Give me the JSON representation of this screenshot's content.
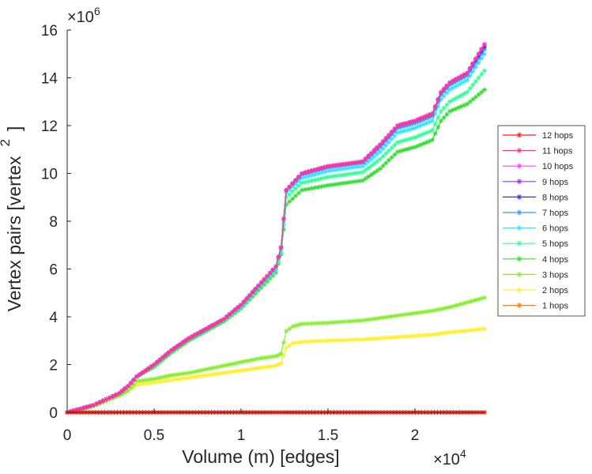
{
  "chart_data": {
    "type": "line",
    "title": "",
    "xlabel": "Volume (m) [edges]",
    "ylabel": "Vertex pairs [vertex",
    "ylabel_superscript": "2",
    "ylabel_close": "]",
    "x_multiplier": "×10",
    "x_multiplier_exp": "4",
    "y_multiplier": "×10",
    "y_multiplier_exp": "6",
    "x_scale": 10000,
    "y_scale": 1000000,
    "xlim": [
      0,
      24000
    ],
    "ylim": [
      0,
      16000000
    ],
    "x_ticks": [
      0,
      5000,
      10000,
      15000,
      20000
    ],
    "x_tick_labels": [
      "0",
      "0.5",
      "1",
      "1.5",
      "2"
    ],
    "y_ticks": [
      0,
      2000000,
      4000000,
      6000000,
      8000000,
      10000000,
      12000000,
      14000000,
      16000000
    ],
    "y_tick_labels": [
      "0",
      "2",
      "4",
      "6",
      "8",
      "10",
      "12",
      "14",
      "16"
    ],
    "grid": false,
    "legend_position": "right",
    "marker": "asterisk",
    "series": [
      {
        "name": "12 hops",
        "color": "#ff1a1a",
        "x": [
          0,
          24000
        ],
        "y": [
          0,
          0
        ]
      },
      {
        "name": "11 hops",
        "color": "#ff3399",
        "x": [
          0,
          1500,
          3000,
          3500,
          4000,
          5000,
          6000,
          7000,
          8000,
          9000,
          10000,
          11000,
          12000,
          12300,
          12600,
          13500,
          15000,
          17000,
          18000,
          19000,
          20000,
          21000,
          21500,
          22000,
          23000,
          24000
        ],
        "y": [
          0,
          300000,
          800000,
          1100000,
          1500000,
          2000000,
          2600000,
          3100000,
          3500000,
          3900000,
          4500000,
          5300000,
          6100000,
          6900000,
          9300000,
          10000000,
          10300000,
          10500000,
          11200000,
          12000000,
          12200000,
          12500000,
          13400000,
          13800000,
          14200000,
          15400000
        ]
      },
      {
        "name": "10 hops",
        "color": "#ff44ff",
        "x": [
          0,
          1500,
          3000,
          3500,
          4000,
          5000,
          6000,
          7000,
          8000,
          9000,
          10000,
          11000,
          12000,
          12300,
          12600,
          13500,
          15000,
          17000,
          18000,
          19000,
          20000,
          21000,
          21500,
          22000,
          23000,
          24000
        ],
        "y": [
          0,
          300000,
          800000,
          1100000,
          1500000,
          2000000,
          2600000,
          3100000,
          3500000,
          3900000,
          4500000,
          5300000,
          6100000,
          6900000,
          9300000,
          10000000,
          10300000,
          10500000,
          11200000,
          12000000,
          12200000,
          12500000,
          13400000,
          13800000,
          14200000,
          15400000
        ]
      },
      {
        "name": "9 hops",
        "color": "#9933ff",
        "x": [
          0,
          1500,
          3000,
          3500,
          4000,
          5000,
          6000,
          7000,
          8000,
          9000,
          10000,
          11000,
          12000,
          12300,
          12600,
          13500,
          15000,
          17000,
          18000,
          19000,
          20000,
          21000,
          21500,
          22000,
          23000,
          24000
        ],
        "y": [
          0,
          300000,
          800000,
          1100000,
          1500000,
          2000000,
          2600000,
          3100000,
          3500000,
          3900000,
          4500000,
          5300000,
          6100000,
          6900000,
          9300000,
          10000000,
          10300000,
          10500000,
          11200000,
          12000000,
          12200000,
          12500000,
          13400000,
          13800000,
          14200000,
          15400000
        ]
      },
      {
        "name": "8 hops",
        "color": "#3333ff",
        "x": [
          0,
          1500,
          3000,
          3500,
          4000,
          5000,
          6000,
          7000,
          8000,
          9000,
          10000,
          11000,
          12000,
          12300,
          12600,
          13500,
          15000,
          17000,
          18000,
          19000,
          20000,
          21000,
          21500,
          22000,
          23000,
          24000
        ],
        "y": [
          0,
          300000,
          800000,
          1100000,
          1500000,
          2000000,
          2600000,
          3100000,
          3500000,
          3900000,
          4500000,
          5300000,
          6100000,
          6900000,
          9300000,
          10000000,
          10300000,
          10500000,
          11200000,
          12000000,
          12200000,
          12500000,
          13400000,
          13800000,
          14200000,
          15300000
        ]
      },
      {
        "name": "7 hops",
        "color": "#3399ff",
        "x": [
          0,
          1500,
          3000,
          3500,
          4000,
          5000,
          6000,
          7000,
          8000,
          9000,
          10000,
          11000,
          12000,
          12300,
          12600,
          13500,
          15000,
          17000,
          18000,
          19000,
          20000,
          21000,
          21500,
          22000,
          23000,
          24000
        ],
        "y": [
          0,
          300000,
          800000,
          1100000,
          1500000,
          2000000,
          2600000,
          3100000,
          3500000,
          3900000,
          4500000,
          5300000,
          6100000,
          6900000,
          9300000,
          9950000,
          10250000,
          10450000,
          11100000,
          11900000,
          12100000,
          12400000,
          13300000,
          13700000,
          14100000,
          15200000
        ]
      },
      {
        "name": "6 hops",
        "color": "#33e6ff",
        "x": [
          0,
          1500,
          3000,
          3500,
          4000,
          5000,
          6000,
          7000,
          8000,
          9000,
          10000,
          11000,
          12000,
          12300,
          12600,
          13500,
          15000,
          17000,
          18000,
          19000,
          20000,
          21000,
          21500,
          22000,
          23000,
          24000
        ],
        "y": [
          0,
          300000,
          800000,
          1100000,
          1500000,
          2000000,
          2600000,
          3100000,
          3500000,
          3900000,
          4450000,
          5250000,
          6000000,
          6800000,
          9200000,
          9800000,
          10100000,
          10300000,
          10900000,
          11700000,
          11900000,
          12200000,
          13100000,
          13500000,
          13900000,
          15000000
        ]
      },
      {
        "name": "5 hops",
        "color": "#33ff99",
        "x": [
          0,
          1500,
          3000,
          3500,
          4000,
          5000,
          6000,
          7000,
          8000,
          9000,
          10000,
          11000,
          12000,
          12300,
          12600,
          13500,
          15000,
          17000,
          18000,
          19000,
          20000,
          21000,
          21500,
          22000,
          23000,
          24000
        ],
        "y": [
          0,
          300000,
          800000,
          1100000,
          1500000,
          1950000,
          2550000,
          3050000,
          3450000,
          3850000,
          4400000,
          5200000,
          5950000,
          6700000,
          9000000,
          9600000,
          9850000,
          10050000,
          10600000,
          11300000,
          11500000,
          11800000,
          12600000,
          13000000,
          13400000,
          14300000
        ]
      },
      {
        "name": "4 hops",
        "color": "#33dd33",
        "x": [
          0,
          1500,
          3000,
          3500,
          4000,
          5000,
          6000,
          7000,
          8000,
          9000,
          10000,
          11000,
          12000,
          12300,
          12600,
          13500,
          15000,
          17000,
          18000,
          19000,
          20000,
          21000,
          21500,
          22000,
          23000,
          24000
        ],
        "y": [
          0,
          300000,
          800000,
          1100000,
          1500000,
          1900000,
          2500000,
          3000000,
          3400000,
          3800000,
          4350000,
          5100000,
          5850000,
          6600000,
          8700000,
          9300000,
          9500000,
          9700000,
          10200000,
          10900000,
          11100000,
          11400000,
          12200000,
          12600000,
          12900000,
          13500000
        ]
      },
      {
        "name": "3 hops",
        "color": "#88ee33",
        "x": [
          0,
          1500,
          3000,
          3500,
          4000,
          5000,
          6000,
          7000,
          8000,
          9000,
          10000,
          11000,
          12000,
          12300,
          12600,
          13000,
          13500,
          15000,
          17000,
          18000,
          19000,
          20000,
          21000,
          22000,
          23000,
          24000
        ],
        "y": [
          0,
          250000,
          700000,
          900000,
          1300000,
          1400000,
          1550000,
          1650000,
          1800000,
          1950000,
          2100000,
          2250000,
          2350000,
          2450000,
          3400000,
          3600000,
          3700000,
          3750000,
          3850000,
          3950000,
          4050000,
          4150000,
          4250000,
          4400000,
          4600000,
          4800000
        ]
      },
      {
        "name": "2 hops",
        "color": "#ffee33",
        "x": [
          0,
          1500,
          3000,
          3500,
          4000,
          5000,
          6000,
          7000,
          8000,
          9000,
          10000,
          11000,
          12000,
          12300,
          12600,
          13000,
          13500,
          15000,
          17000,
          18000,
          19000,
          20000,
          21000,
          22000,
          23000,
          24000
        ],
        "y": [
          0,
          250000,
          700000,
          900000,
          1150000,
          1250000,
          1350000,
          1450000,
          1550000,
          1650000,
          1750000,
          1850000,
          1950000,
          2050000,
          2700000,
          2900000,
          2950000,
          3000000,
          3050000,
          3100000,
          3150000,
          3200000,
          3250000,
          3350000,
          3420000,
          3500000
        ]
      },
      {
        "name": "1 hops",
        "color": "#ff8000",
        "x": [
          0,
          24000
        ],
        "y": [
          0,
          0
        ]
      }
    ]
  }
}
